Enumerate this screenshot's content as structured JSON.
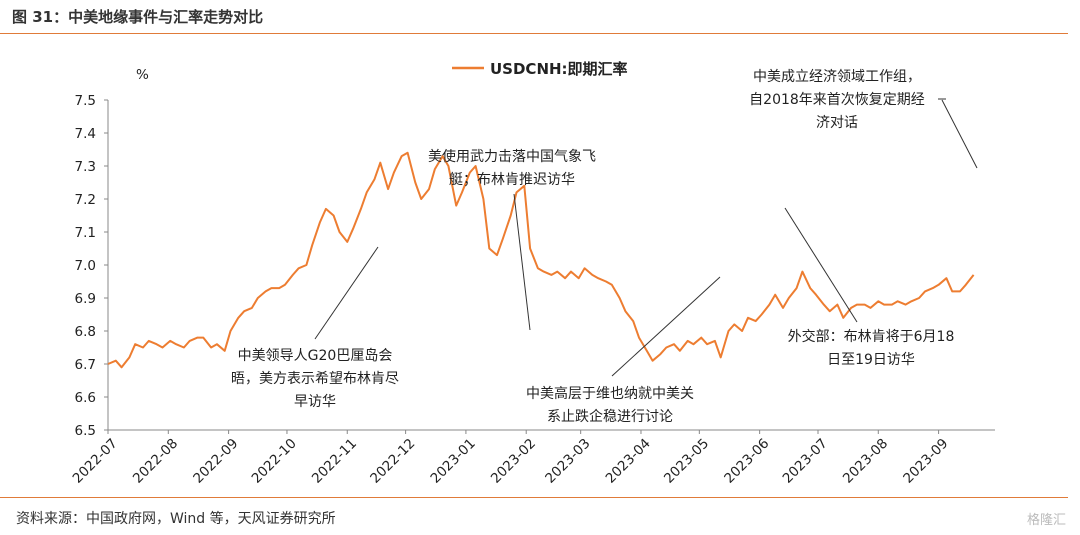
{
  "figure": {
    "title": "图 31：中美地缘事件与汇率走势对比",
    "source": "资料来源：中国政府网，Wind 等，天风证券研究所",
    "watermark": "格隆汇"
  },
  "colors": {
    "series": "#ed7d31",
    "accent_rule": "#e07b39",
    "annotation_line": "#333333"
  },
  "chart_data": {
    "type": "line",
    "unit": "%",
    "legend_position": "top-center",
    "grid": false,
    "ylim": [
      6.5,
      7.5
    ],
    "yticks": [
      "7.5",
      "7.4",
      "7.3",
      "7.2",
      "7.1",
      "7.0",
      "6.9",
      "6.8",
      "6.7",
      "6.6",
      "6.5"
    ],
    "xticks": [
      "2022-07",
      "2022-08",
      "2022-09",
      "2022-10",
      "2022-11",
      "2022-12",
      "2023-01",
      "2023-02",
      "2023-03",
      "2023-04",
      "2023-05",
      "2023-06",
      "2023-07",
      "2023-08",
      "2023-09"
    ],
    "series": [
      {
        "name": "USDCNH:即期汇率",
        "points": [
          [
            "2022-07-01",
            6.7
          ],
          [
            "2022-07-05",
            6.71
          ],
          [
            "2022-07-08",
            6.69
          ],
          [
            "2022-07-12",
            6.72
          ],
          [
            "2022-07-15",
            6.76
          ],
          [
            "2022-07-19",
            6.75
          ],
          [
            "2022-07-22",
            6.77
          ],
          [
            "2022-07-26",
            6.76
          ],
          [
            "2022-07-29",
            6.75
          ],
          [
            "2022-08-02",
            6.77
          ],
          [
            "2022-08-05",
            6.76
          ],
          [
            "2022-08-09",
            6.75
          ],
          [
            "2022-08-12",
            6.77
          ],
          [
            "2022-08-16",
            6.78
          ],
          [
            "2022-08-19",
            6.78
          ],
          [
            "2022-08-23",
            6.75
          ],
          [
            "2022-08-26",
            6.76
          ],
          [
            "2022-08-30",
            6.74
          ],
          [
            "2022-09-02",
            6.8
          ],
          [
            "2022-09-06",
            6.84
          ],
          [
            "2022-09-09",
            6.86
          ],
          [
            "2022-09-13",
            6.87
          ],
          [
            "2022-09-16",
            6.9
          ],
          [
            "2022-09-20",
            6.92
          ],
          [
            "2022-09-23",
            6.93
          ],
          [
            "2022-09-27",
            6.93
          ],
          [
            "2022-09-30",
            6.94
          ],
          [
            "2022-10-04",
            6.97
          ],
          [
            "2022-10-07",
            6.99
          ],
          [
            "2022-10-11",
            7.0
          ],
          [
            "2022-10-14",
            7.06
          ],
          [
            "2022-10-18",
            7.13
          ],
          [
            "2022-10-21",
            7.17
          ],
          [
            "2022-10-25",
            7.15
          ],
          [
            "2022-10-28",
            7.1
          ],
          [
            "2022-11-01",
            7.07
          ],
          [
            "2022-11-04",
            7.11
          ],
          [
            "2022-11-08",
            7.17
          ],
          [
            "2022-11-11",
            7.22
          ],
          [
            "2022-11-15",
            7.26
          ],
          [
            "2022-11-18",
            7.31
          ],
          [
            "2022-11-22",
            7.23
          ],
          [
            "2022-11-25",
            7.28
          ],
          [
            "2022-11-29",
            7.33
          ],
          [
            "2022-12-02",
            7.34
          ],
          [
            "2022-12-06",
            7.25
          ],
          [
            "2022-12-09",
            7.2
          ],
          [
            "2022-12-13",
            7.23
          ],
          [
            "2022-12-16",
            7.29
          ],
          [
            "2022-12-20",
            7.33
          ],
          [
            "2022-12-23",
            7.3
          ],
          [
            "2022-12-27",
            7.18
          ],
          [
            "2022-12-30",
            7.22
          ],
          [
            "2023-01-03",
            7.28
          ],
          [
            "2023-01-06",
            7.3
          ],
          [
            "2023-01-10",
            7.2
          ],
          [
            "2023-01-13",
            7.05
          ],
          [
            "2023-01-17",
            7.03
          ],
          [
            "2023-01-20",
            7.08
          ],
          [
            "2023-01-24",
            7.15
          ],
          [
            "2023-01-27",
            7.22
          ],
          [
            "2023-01-31",
            7.24
          ],
          [
            "2023-02-03",
            7.05
          ],
          [
            "2023-02-07",
            6.99
          ],
          [
            "2023-02-10",
            6.98
          ],
          [
            "2023-02-14",
            6.97
          ],
          [
            "2023-02-17",
            6.98
          ],
          [
            "2023-02-21",
            6.96
          ],
          [
            "2023-02-24",
            6.98
          ],
          [
            "2023-02-28",
            6.96
          ],
          [
            "2023-03-03",
            6.99
          ],
          [
            "2023-03-07",
            6.97
          ],
          [
            "2023-03-10",
            6.96
          ],
          [
            "2023-03-14",
            6.95
          ],
          [
            "2023-03-17",
            6.94
          ],
          [
            "2023-03-21",
            6.9
          ],
          [
            "2023-03-24",
            6.86
          ],
          [
            "2023-03-28",
            6.83
          ],
          [
            "2023-03-31",
            6.78
          ],
          [
            "2023-04-04",
            6.74
          ],
          [
            "2023-04-07",
            6.71
          ],
          [
            "2023-04-11",
            6.73
          ],
          [
            "2023-04-14",
            6.75
          ],
          [
            "2023-04-18",
            6.76
          ],
          [
            "2023-04-21",
            6.74
          ],
          [
            "2023-04-25",
            6.77
          ],
          [
            "2023-04-28",
            6.76
          ],
          [
            "2023-05-02",
            6.78
          ],
          [
            "2023-05-05",
            6.76
          ],
          [
            "2023-05-09",
            6.77
          ],
          [
            "2023-05-12",
            6.72
          ],
          [
            "2023-05-16",
            6.8
          ],
          [
            "2023-05-19",
            6.82
          ],
          [
            "2023-05-23",
            6.8
          ],
          [
            "2023-05-26",
            6.84
          ],
          [
            "2023-05-30",
            6.83
          ],
          [
            "2023-06-02",
            6.85
          ],
          [
            "2023-06-06",
            6.88
          ],
          [
            "2023-06-09",
            6.91
          ],
          [
            "2023-06-13",
            6.87
          ],
          [
            "2023-06-16",
            6.9
          ],
          [
            "2023-06-20",
            6.93
          ],
          [
            "2023-06-23",
            6.98
          ],
          [
            "2023-06-27",
            6.93
          ],
          [
            "2023-06-30",
            6.91
          ],
          [
            "2023-07-04",
            6.88
          ],
          [
            "2023-07-07",
            6.86
          ],
          [
            "2023-07-11",
            6.88
          ],
          [
            "2023-07-14",
            6.84
          ],
          [
            "2023-07-18",
            6.87
          ],
          [
            "2023-07-21",
            6.88
          ],
          [
            "2023-07-25",
            6.88
          ],
          [
            "2023-07-28",
            6.87
          ],
          [
            "2023-08-01",
            6.89
          ],
          [
            "2023-08-04",
            6.88
          ],
          [
            "2023-08-08",
            6.88
          ],
          [
            "2023-08-11",
            6.89
          ],
          [
            "2023-08-15",
            6.88
          ],
          [
            "2023-08-18",
            6.89
          ],
          [
            "2023-08-22",
            6.9
          ],
          [
            "2023-08-25",
            6.92
          ],
          [
            "2023-08-29",
            6.93
          ],
          [
            "2023-09-01",
            6.94
          ],
          [
            "2023-09-05",
            6.96
          ],
          [
            "2023-09-08",
            6.92
          ],
          [
            "2023-09-12",
            6.92
          ],
          [
            "2023-09-15",
            6.94
          ],
          [
            "2023-09-19",
            6.97
          ]
        ]
      }
    ],
    "annotations": [
      {
        "lines": [
          "中美领导人G20巴厘岛会",
          "晤，美方表示希望布林肯尽",
          "早访华"
        ]
      },
      {
        "lines": [
          "美使用武力击落中国气象飞",
          "艇；布林肯推迟访华"
        ]
      },
      {
        "lines": [
          "中美高层于维也纳就中美关",
          "系止跌企稳进行讨论"
        ]
      },
      {
        "lines": [
          "外交部：布林肯将于6月18",
          "日至19日访华"
        ]
      },
      {
        "lines": [
          "中美成立经济领域工作组，",
          "自2018年来首次恢复定期经",
          "济对话"
        ]
      }
    ]
  }
}
